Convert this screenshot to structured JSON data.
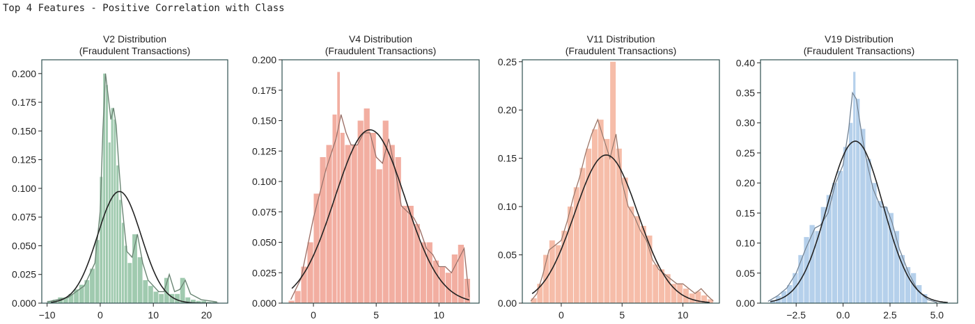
{
  "heading": "Top 4 Features - Positive Correlation with Class",
  "chart_data": [
    {
      "type": "histogram",
      "title_line1": "V2 Distribution",
      "title_line2": "(Fraudulent Transactions)",
      "color": "#8fc1a1",
      "xlim": [
        -11,
        24
      ],
      "ylim": [
        0,
        0.212
      ],
      "xticks": [
        -10,
        0,
        10,
        20
      ],
      "xtick_labels": [
        "−10",
        "0",
        "10",
        "20"
      ],
      "yticks": [
        0,
        0.025,
        0.05,
        0.075,
        0.1,
        0.125,
        0.15,
        0.175,
        0.2
      ],
      "ytick_labels": [
        "0.000",
        "0.025",
        "0.050",
        "0.075",
        "0.100",
        "0.125",
        "0.150",
        "0.175",
        "0.200"
      ],
      "bins_x": [
        -9.5,
        -8.5,
        -7.5,
        -6.5,
        -5.5,
        -4.5,
        -3.5,
        -2.5,
        -1.5,
        -0.5,
        0.25,
        0.75,
        1.25,
        1.75,
        2.25,
        2.75,
        3.25,
        3.75,
        4.25,
        4.75,
        5.5,
        6.5,
        7.5,
        8.5,
        9.5,
        10.5,
        11.5,
        12.5,
        13.5,
        14.5,
        15.5,
        16.5,
        17.5,
        18.5,
        19.5,
        20.5,
        21.5
      ],
      "bins_y": [
        0.002,
        0.003,
        0.005,
        0.005,
        0.008,
        0.012,
        0.016,
        0.02,
        0.03,
        0.055,
        0.11,
        0.2,
        0.19,
        0.14,
        0.17,
        0.16,
        0.12,
        0.09,
        0.07,
        0.05,
        0.035,
        0.06,
        0.04,
        0.02,
        0.015,
        0.01,
        0.008,
        0.022,
        0.008,
        0.008,
        0.022,
        0.005,
        0.003,
        0.002,
        0.002,
        0.001,
        0.001
      ],
      "kde_x": [
        -10,
        -6,
        -3,
        -1,
        0,
        0.5,
        1,
        1.5,
        2,
        2.5,
        3,
        3.5,
        4,
        5,
        6,
        7,
        8,
        9,
        10,
        11,
        12,
        13,
        14,
        15,
        16,
        17,
        19,
        22
      ],
      "kde_y": [
        0.001,
        0.005,
        0.015,
        0.035,
        0.08,
        0.15,
        0.2,
        0.18,
        0.16,
        0.17,
        0.155,
        0.12,
        0.09,
        0.045,
        0.04,
        0.06,
        0.035,
        0.02,
        0.015,
        0.01,
        0.01,
        0.025,
        0.01,
        0.012,
        0.02,
        0.008,
        0.003,
        0.001
      ],
      "norm_mean": 3.6,
      "norm_sd": 4.1
    },
    {
      "type": "histogram",
      "title_line1": "V4 Distribution",
      "title_line2": "(Fraudulent Transactions)",
      "color": "#f0a090",
      "xlim": [
        -2.5,
        13.2
      ],
      "ylim": [
        0,
        0.2
      ],
      "xticks": [
        0,
        5,
        10
      ],
      "xtick_labels": [
        "0",
        "5",
        "10"
      ],
      "yticks": [
        0,
        0.025,
        0.05,
        0.075,
        0.1,
        0.125,
        0.15,
        0.175,
        0.2
      ],
      "ytick_labels": [
        "0.000",
        "0.025",
        "0.050",
        "0.075",
        "0.100",
        "0.125",
        "0.150",
        "0.175",
        "0.200"
      ],
      "bins_x": [
        -1.75,
        -1.25,
        -0.75,
        -0.25,
        0.25,
        0.75,
        1.25,
        1.75,
        2.0,
        2.25,
        2.75,
        3.25,
        3.75,
        4.25,
        4.75,
        5.25,
        5.75,
        6.25,
        6.75,
        7.25,
        7.75,
        8.25,
        8.75,
        9.25,
        9.75,
        10.25,
        10.75,
        11.25,
        11.75,
        12.25
      ],
      "bins_y": [
        0.002,
        0.01,
        0.03,
        0.05,
        0.09,
        0.12,
        0.13,
        0.155,
        0.19,
        0.14,
        0.13,
        0.13,
        0.15,
        0.16,
        0.14,
        0.11,
        0.15,
        0.13,
        0.12,
        0.08,
        0.08,
        0.065,
        0.05,
        0.05,
        0.035,
        0.03,
        0.025,
        0.04,
        0.048,
        0.02
      ],
      "kde_x": [
        -1.8,
        -1,
        0,
        1,
        1.8,
        2.2,
        2.6,
        3,
        3.5,
        4,
        4.5,
        5,
        5.5,
        6,
        6.5,
        7,
        7.5,
        8,
        8.5,
        9,
        9.5,
        10,
        10.5,
        11,
        11.5,
        12,
        12.4
      ],
      "kde_y": [
        0.003,
        0.02,
        0.07,
        0.11,
        0.135,
        0.155,
        0.14,
        0.13,
        0.13,
        0.14,
        0.14,
        0.12,
        0.115,
        0.135,
        0.11,
        0.08,
        0.075,
        0.07,
        0.06,
        0.045,
        0.04,
        0.03,
        0.03,
        0.025,
        0.035,
        0.045,
        0.005
      ],
      "norm_mean": 4.5,
      "norm_sd": 2.8
    },
    {
      "type": "histogram",
      "title_line1": "V11 Distribution",
      "title_line2": "(Fraudulent Transactions)",
      "color": "#f5b29a",
      "xlim": [
        -3.2,
        13
      ],
      "ylim": [
        0,
        0.252
      ],
      "xticks": [
        0,
        5,
        10
      ],
      "xtick_labels": [
        "0",
        "5",
        "10"
      ],
      "yticks": [
        0,
        0.05,
        0.1,
        0.15,
        0.2,
        0.25
      ],
      "ytick_labels": [
        "0.00",
        "0.05",
        "0.10",
        "0.15",
        "0.20",
        "0.25"
      ],
      "bins_x": [
        -2.25,
        -1.75,
        -1.25,
        -0.75,
        -0.25,
        0.25,
        0.75,
        1.25,
        1.75,
        2.25,
        2.75,
        3.25,
        3.75,
        4.25,
        4.75,
        5.25,
        5.75,
        6.25,
        6.75,
        7.25,
        7.75,
        8.25,
        8.75,
        9.25,
        9.75,
        10.25,
        10.75,
        11.25,
        11.75,
        12.25
      ],
      "bins_y": [
        0.005,
        0.02,
        0.05,
        0.065,
        0.06,
        0.075,
        0.1,
        0.12,
        0.14,
        0.16,
        0.18,
        0.19,
        0.17,
        0.25,
        0.16,
        0.13,
        0.1,
        0.09,
        0.08,
        0.07,
        0.04,
        0.035,
        0.03,
        0.02,
        0.02,
        0.015,
        0.01,
        0.012,
        0.008,
        0.004
      ],
      "kde_x": [
        -2.5,
        -2,
        -1.5,
        -1,
        -0.5,
        0,
        0.5,
        1,
        1.5,
        2,
        2.5,
        3,
        3.5,
        4,
        4.5,
        5,
        5.5,
        6,
        6.5,
        7,
        7.5,
        8,
        8.5,
        9,
        9.5,
        10,
        10.5,
        11,
        11.5,
        12,
        12.5
      ],
      "kde_y": [
        0.002,
        0.01,
        0.03,
        0.055,
        0.06,
        0.065,
        0.085,
        0.11,
        0.13,
        0.155,
        0.175,
        0.19,
        0.17,
        0.15,
        0.175,
        0.125,
        0.1,
        0.09,
        0.075,
        0.065,
        0.045,
        0.035,
        0.03,
        0.025,
        0.02,
        0.02,
        0.015,
        0.01,
        0.015,
        0.008,
        0.002
      ],
      "norm_mean": 3.7,
      "norm_sd": 2.6
    },
    {
      "type": "histogram",
      "title_line1": "V19 Distribution",
      "title_line2": "(Fraudulent Transactions)",
      "color": "#a8c8e8",
      "xlim": [
        -4.4,
        6.1
      ],
      "ylim": [
        0,
        0.405
      ],
      "xticks": [
        -2.5,
        0,
        2.5,
        5
      ],
      "xtick_labels": [
        "−2.5",
        "0.0",
        "2.5",
        "5.0"
      ],
      "yticks": [
        0,
        0.05,
        0.1,
        0.15,
        0.2,
        0.25,
        0.3,
        0.35,
        0.4
      ],
      "ytick_labels": [
        "0.00",
        "0.05",
        "0.10",
        "0.15",
        "0.20",
        "0.25",
        "0.30",
        "0.35",
        "0.40"
      ],
      "bins_x": [
        -3.75,
        -3.45,
        -3.15,
        -2.85,
        -2.55,
        -2.25,
        -1.95,
        -1.65,
        -1.35,
        -1.05,
        -0.75,
        -0.45,
        -0.15,
        0.15,
        0.45,
        0.6,
        0.75,
        1.05,
        1.35,
        1.65,
        1.95,
        2.25,
        2.55,
        2.85,
        3.15,
        3.45,
        3.75,
        4.05,
        4.35
      ],
      "bins_y": [
        0.005,
        0.012,
        0.02,
        0.03,
        0.05,
        0.08,
        0.11,
        0.13,
        0.12,
        0.16,
        0.18,
        0.2,
        0.22,
        0.26,
        0.3,
        0.385,
        0.34,
        0.29,
        0.24,
        0.2,
        0.17,
        0.16,
        0.15,
        0.12,
        0.08,
        0.06,
        0.05,
        0.03,
        0.015
      ],
      "kde_x": [
        -4,
        -3.5,
        -3,
        -2.5,
        -2,
        -1.5,
        -1.2,
        -0.8,
        -0.4,
        0,
        0.3,
        0.5,
        0.7,
        1,
        1.3,
        1.6,
        2,
        2.3,
        2.6,
        3,
        3.5,
        4,
        4.5,
        5
      ],
      "kde_y": [
        0.003,
        0.012,
        0.025,
        0.05,
        0.09,
        0.125,
        0.13,
        0.15,
        0.2,
        0.23,
        0.29,
        0.35,
        0.34,
        0.28,
        0.23,
        0.19,
        0.16,
        0.16,
        0.135,
        0.09,
        0.05,
        0.02,
        0.006,
        0.001
      ],
      "norm_mean": 0.65,
      "norm_sd": 1.48
    }
  ]
}
